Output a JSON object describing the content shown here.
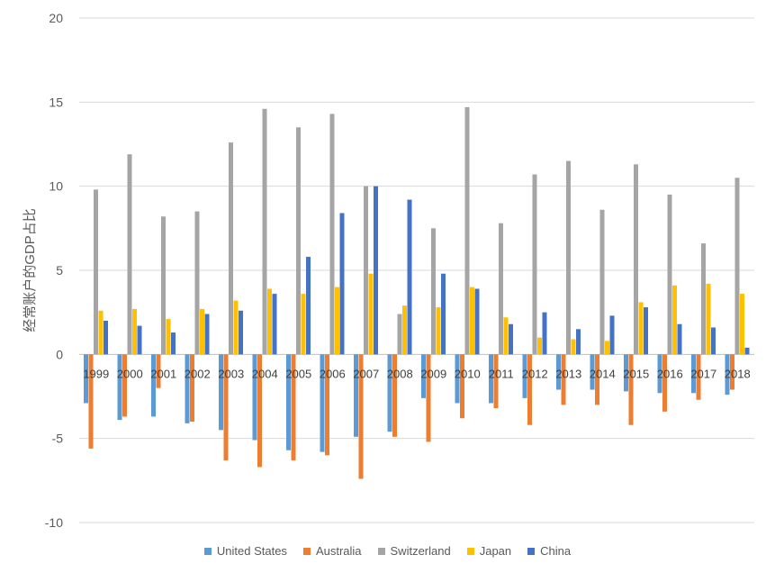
{
  "chart_data": {
    "type": "bar",
    "title": "",
    "xlabel": "",
    "ylabel": "经常账户的GDP占比",
    "ylim": [
      -10,
      20
    ],
    "yticks": [
      -10,
      -5,
      0,
      5,
      10,
      15,
      20
    ],
    "grid": true,
    "legend_position": "bottom",
    "categories": [
      "1999",
      "2000",
      "2001",
      "2002",
      "2003",
      "2004",
      "2005",
      "2006",
      "2007",
      "2008",
      "2009",
      "2010",
      "2011",
      "2012",
      "2013",
      "2014",
      "2015",
      "2016",
      "2017",
      "2018"
    ],
    "series": [
      {
        "name": "United States",
        "color": "#5B9BD5",
        "values": [
          -2.9,
          -3.9,
          -3.7,
          -4.1,
          -4.5,
          -5.1,
          -5.7,
          -5.8,
          -4.9,
          -4.6,
          -2.6,
          -2.9,
          -2.9,
          -2.6,
          -2.1,
          -2.1,
          -2.2,
          -2.3,
          -2.3,
          -2.4
        ]
      },
      {
        "name": "Australia",
        "color": "#ED7D31",
        "values": [
          -5.6,
          -3.7,
          -2.0,
          -4.0,
          -6.3,
          -6.7,
          -6.3,
          -6.0,
          -7.4,
          -4.9,
          -5.2,
          -3.8,
          -3.2,
          -4.2,
          -3.0,
          -3.0,
          -4.2,
          -3.4,
          -2.7,
          -2.1
        ]
      },
      {
        "name": "Switzerland",
        "color": "#A5A5A5",
        "values": [
          9.8,
          11.9,
          8.2,
          8.5,
          12.6,
          14.6,
          13.5,
          14.3,
          10.0,
          2.4,
          7.5,
          14.7,
          7.8,
          10.7,
          11.5,
          8.6,
          11.3,
          9.5,
          6.6,
          10.5
        ]
      },
      {
        "name": "Japan",
        "color": "#FFC000",
        "values": [
          2.6,
          2.7,
          2.1,
          2.7,
          3.2,
          3.9,
          3.6,
          4.0,
          4.8,
          2.9,
          2.8,
          4.0,
          2.2,
          1.0,
          0.9,
          0.8,
          3.1,
          4.1,
          4.2,
          3.6
        ]
      },
      {
        "name": "China",
        "color": "#4472C4",
        "values": [
          2.0,
          1.7,
          1.3,
          2.4,
          2.6,
          3.6,
          5.8,
          8.4,
          10.0,
          9.2,
          4.8,
          3.9,
          1.8,
          2.5,
          1.5,
          2.3,
          2.8,
          1.8,
          1.6,
          0.4
        ]
      }
    ]
  }
}
